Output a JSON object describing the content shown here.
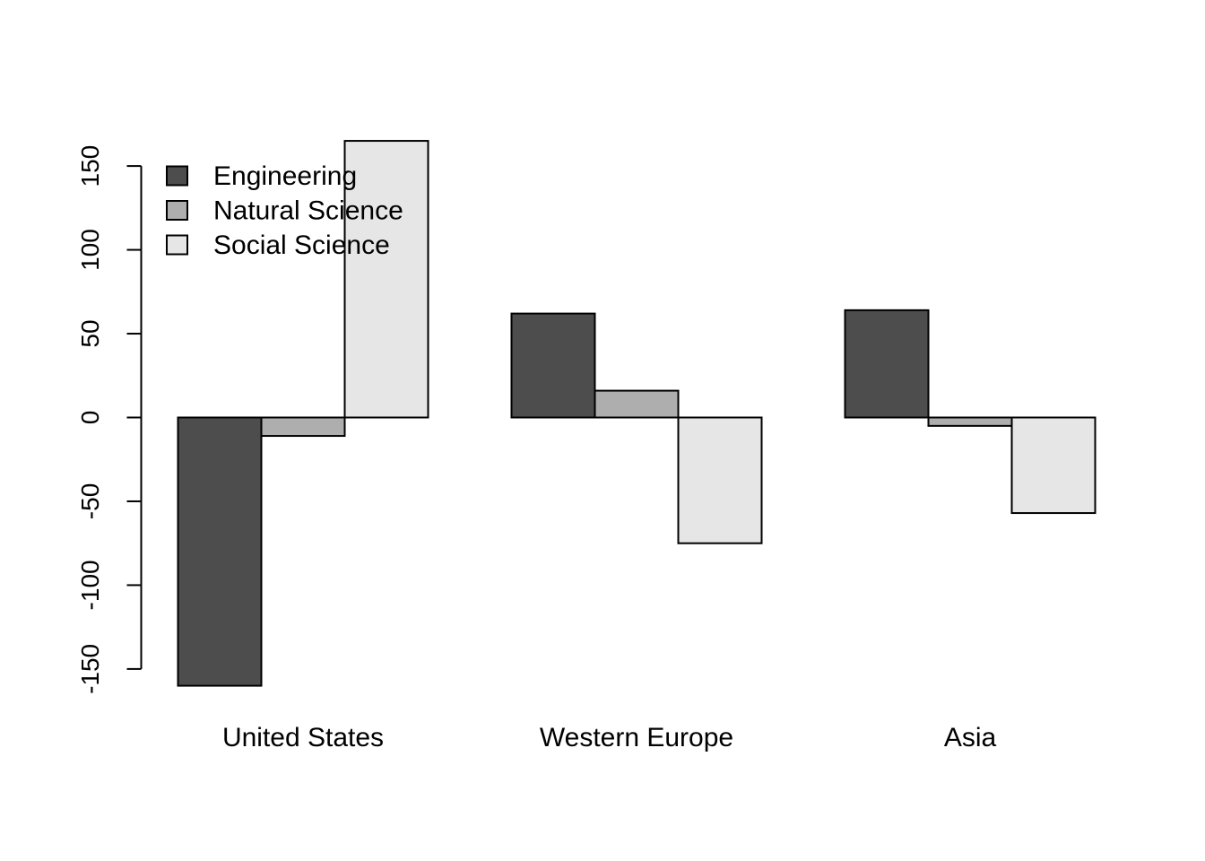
{
  "chart_data": {
    "type": "bar",
    "orientation": "vertical",
    "grouping": "side-by-side",
    "categories": [
      "United States",
      "Western Europe",
      "Asia"
    ],
    "series": [
      {
        "name": "Engineering",
        "color": "#4d4d4d",
        "values": [
          -160,
          62,
          64
        ]
      },
      {
        "name": "Natural Science",
        "color": "#aeaeae",
        "values": [
          -11,
          16,
          -5
        ]
      },
      {
        "name": "Social Science",
        "color": "#e6e6e6",
        "values": [
          165,
          -75,
          -57
        ]
      }
    ],
    "y_ticks": [
      -150,
      -100,
      -50,
      0,
      50,
      100,
      150
    ],
    "y_tick_labels": [
      "-150",
      "-100",
      "-50",
      "0",
      "50",
      "100",
      "150"
    ],
    "ylim": [
      -160,
      165
    ],
    "title": "",
    "xlabel": "",
    "ylabel": "",
    "grid": false,
    "legend_position": "top-left",
    "legend_box": false
  }
}
